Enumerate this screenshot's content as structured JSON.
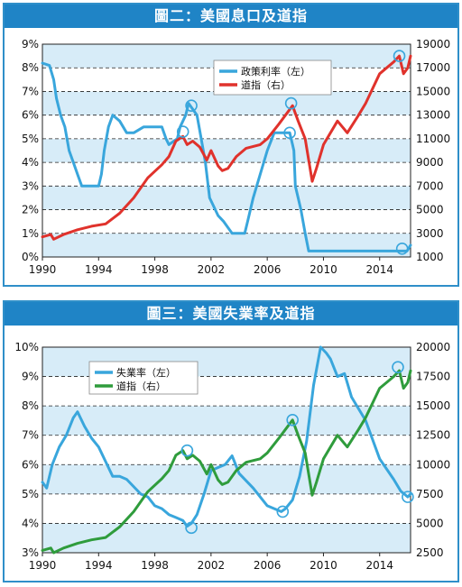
{
  "colors": {
    "blue": "#39a6dc",
    "red": "#e0322c",
    "green": "#2f9c3c",
    "panel_bg": "#d7ecf8",
    "title_bg": "#1f84c6"
  },
  "chart_data": [
    {
      "type": "line",
      "title": "圖二：美國息口及道指",
      "legend": [
        {
          "label": "政策利率（左）",
          "color": "#39a6dc"
        },
        {
          "label": "道指（右）",
          "color": "#e0322c"
        }
      ],
      "legend_position": "top-center",
      "grid": true,
      "xlim": [
        1990,
        2016.2
      ],
      "x_ticks": [
        "1990",
        "1994",
        "1998",
        "2002",
        "2006",
        "2010",
        "2014"
      ],
      "y_left": {
        "lim": [
          0,
          9
        ],
        "ticks": [
          "0%",
          "1%",
          "2%",
          "3%",
          "4%",
          "5%",
          "6%",
          "7%",
          "8%",
          "9%"
        ]
      },
      "y_right": {
        "lim": [
          1000,
          19000
        ],
        "ticks": [
          "1000",
          "3000",
          "5000",
          "7000",
          "9000",
          "11000",
          "13000",
          "15000",
          "17000",
          "19000"
        ]
      },
      "series": [
        {
          "name": "政策利率（左）",
          "axis": "left",
          "color": "#39a6dc",
          "x": [
            1990,
            1990.5,
            1990.8,
            1991,
            1991.3,
            1991.6,
            1991.9,
            1992.2,
            1992.5,
            1992.8,
            1993.5,
            1994.0,
            1994.2,
            1994.4,
            1994.7,
            1995.0,
            1995.5,
            1996.0,
            1996.5,
            1997.2,
            1997.5,
            1998.5,
            1998.8,
            1999.0,
            1999.6,
            1999.8,
            2000.2,
            2000.4,
            2001.0,
            2001.3,
            2001.6,
            2001.9,
            2002.5,
            2002.9,
            2003.5,
            2004.4,
            2004.6,
            2005.0,
            2005.5,
            2006.0,
            2006.5,
            2007.6,
            2007.8,
            2007.9,
            2008.0,
            2008.2,
            2008.4,
            2008.7,
            2008.95,
            2015.95,
            2016.2
          ],
          "y": [
            8.2,
            8.1,
            7.5,
            6.7,
            6.0,
            5.5,
            4.5,
            4.0,
            3.5,
            3.0,
            3.0,
            3.0,
            3.5,
            4.5,
            5.5,
            6.0,
            5.75,
            5.25,
            5.25,
            5.5,
            5.5,
            5.5,
            5.0,
            4.75,
            5.0,
            5.5,
            6.0,
            6.5,
            6.0,
            5.0,
            4.0,
            2.5,
            1.75,
            1.5,
            1.0,
            1.0,
            1.5,
            2.5,
            3.5,
            4.5,
            5.25,
            5.25,
            4.75,
            4.5,
            3.0,
            2.5,
            2.0,
            1.0,
            0.25,
            0.25,
            0.5
          ]
        },
        {
          "name": "道指（右）",
          "axis": "right",
          "color": "#e0322c",
          "x": [
            1990,
            1990.6,
            1990.8,
            1991.5,
            1992.5,
            1993.5,
            1994.5,
            1995.5,
            1996.5,
            1997.5,
            1998.5,
            1999.0,
            1999.5,
            2000.0,
            2000.3,
            2000.7,
            2001.2,
            2001.7,
            2002.0,
            2002.5,
            2002.8,
            2003.2,
            2003.8,
            2004.5,
            2005.5,
            2006.0,
            2006.8,
            2007.3,
            2007.8,
            2008.2,
            2008.7,
            2009.2,
            2009.5,
            2010.0,
            2011.0,
            2011.7,
            2012.5,
            2013.0,
            2014.0,
            2015.0,
            2015.4,
            2015.7,
            2016.0,
            2016.2
          ],
          "y": [
            2700,
            2900,
            2500,
            2900,
            3300,
            3600,
            3800,
            4700,
            6000,
            7700,
            8800,
            9500,
            10800,
            11200,
            10500,
            10800,
            10300,
            9200,
            10000,
            8700,
            8300,
            8500,
            9500,
            10200,
            10500,
            11000,
            12200,
            13000,
            13800,
            12500,
            11000,
            7400,
            8500,
            10500,
            12500,
            11500,
            13000,
            14000,
            16500,
            17500,
            18000,
            16500,
            17000,
            18000
          ]
        }
      ]
    },
    {
      "type": "line",
      "title": "圖三：美國失業率及道指",
      "legend": [
        {
          "label": "失業率（左）",
          "color": "#39a6dc"
        },
        {
          "label": "道指（右）",
          "color": "#2f9c3c"
        }
      ],
      "legend_position": "top-left",
      "grid": true,
      "xlim": [
        1990,
        2016.2
      ],
      "x_ticks": [
        "1990",
        "1994",
        "1998",
        "2002",
        "2006",
        "2010",
        "2014"
      ],
      "y_left": {
        "lim": [
          3,
          10
        ],
        "ticks": [
          "3%",
          "4%",
          "5%",
          "6%",
          "7%",
          "8%",
          "9%",
          "10%"
        ]
      },
      "y_right": {
        "lim": [
          2500,
          20000
        ],
        "ticks": [
          "2500",
          "5000",
          "7500",
          "10000",
          "12500",
          "15000",
          "17500",
          "20000"
        ]
      },
      "series": [
        {
          "name": "失業率（左）",
          "axis": "left",
          "color": "#39a6dc",
          "x": [
            1990,
            1990.3,
            1990.7,
            1991.2,
            1991.7,
            1992.2,
            1992.5,
            1993.0,
            1993.5,
            1994.0,
            1994.5,
            1995.0,
            1995.5,
            1996.0,
            1997.0,
            1997.5,
            1998.0,
            1998.5,
            1999.0,
            1999.5,
            2000.0,
            2000.3,
            2000.6,
            2001.0,
            2001.5,
            2002.0,
            2002.5,
            2003.0,
            2003.5,
            2004.0,
            2005.0,
            2006.0,
            2006.5,
            2007.0,
            2007.3,
            2007.8,
            2008.3,
            2008.8,
            2009.3,
            2009.8,
            2010.2,
            2010.5,
            2011.0,
            2011.5,
            2012.0,
            2013.0,
            2014.0,
            2015.0,
            2015.5,
            2016.0,
            2016.2
          ],
          "y": [
            5.4,
            5.2,
            6.0,
            6.6,
            7.0,
            7.6,
            7.8,
            7.3,
            6.9,
            6.6,
            6.1,
            5.6,
            5.6,
            5.5,
            5.0,
            4.9,
            4.6,
            4.5,
            4.3,
            4.2,
            4.1,
            3.9,
            4.0,
            4.3,
            5.0,
            5.8,
            5.9,
            6.0,
            6.3,
            5.7,
            5.2,
            4.6,
            4.5,
            4.4,
            4.5,
            4.8,
            5.6,
            6.8,
            8.7,
            10.0,
            9.8,
            9.6,
            9.0,
            9.1,
            8.3,
            7.5,
            6.2,
            5.5,
            5.1,
            4.9,
            5.0
          ]
        },
        {
          "name": "道指（右）",
          "axis": "right",
          "color": "#2f9c3c",
          "x": [
            1990,
            1990.6,
            1990.8,
            1991.5,
            1992.5,
            1993.5,
            1994.5,
            1995.5,
            1996.5,
            1997.5,
            1998.5,
            1999.0,
            1999.5,
            2000.0,
            2000.3,
            2000.7,
            2001.2,
            2001.7,
            2002.0,
            2002.5,
            2002.8,
            2003.2,
            2003.8,
            2004.5,
            2005.5,
            2006.0,
            2006.8,
            2007.3,
            2007.8,
            2008.2,
            2008.7,
            2009.2,
            2009.5,
            2010.0,
            2011.0,
            2011.7,
            2012.5,
            2013.0,
            2014.0,
            2015.0,
            2015.4,
            2015.7,
            2016.0,
            2016.2
          ],
          "y": [
            2700,
            2900,
            2500,
            2900,
            3300,
            3600,
            3800,
            4700,
            6000,
            7700,
            8800,
            9500,
            10800,
            11200,
            10500,
            10800,
            10300,
            9200,
            10000,
            8700,
            8300,
            8500,
            9500,
            10200,
            10500,
            11000,
            12200,
            13000,
            13800,
            12500,
            11000,
            7400,
            8500,
            10500,
            12500,
            11500,
            13000,
            14000,
            16500,
            17500,
            18000,
            16500,
            17000,
            18000
          ]
        }
      ]
    }
  ]
}
